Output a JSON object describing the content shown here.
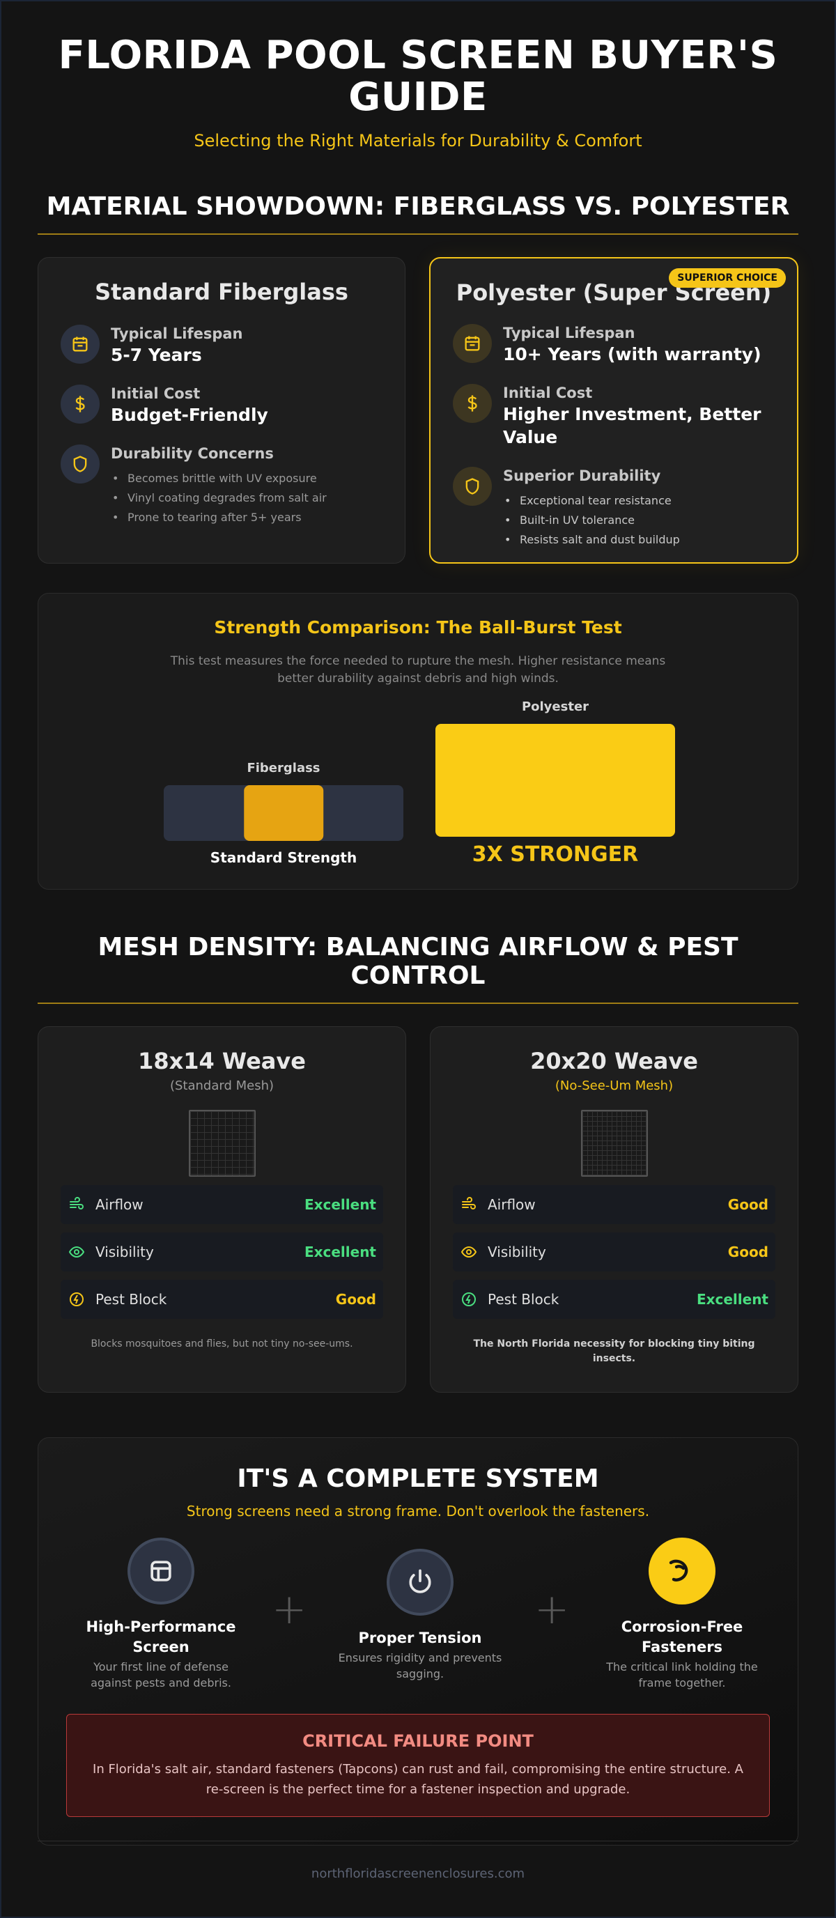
{
  "hero": {
    "title": "FLORIDA POOL SCREEN BUYER'S GUIDE",
    "subtitle": "Selecting the Right Materials for Durability & Comfort"
  },
  "materials": {
    "section_title": "MATERIAL SHOWDOWN: FIBERGLASS VS. POLYESTER",
    "fiberglass": {
      "title": "Standard Fiberglass",
      "lifespan_label": "Typical Lifespan",
      "lifespan_value": "5-7 Years",
      "cost_label": "Initial Cost",
      "cost_value": "Budget-Friendly",
      "durability_label": "Durability Concerns",
      "durability_points": [
        "Becomes brittle with UV exposure",
        "Vinyl coating degrades from salt air",
        "Prone to tearing after 5+ years"
      ]
    },
    "polyester": {
      "badge": "SUPERIOR CHOICE",
      "title": "Polyester (Super Screen)",
      "lifespan_label": "Typical Lifespan",
      "lifespan_value": "10+ Years (with warranty)",
      "cost_label": "Initial Cost",
      "cost_value": "Higher Investment, Better Value",
      "durability_label": "Superior Durability",
      "durability_points": [
        "Exceptional tear resistance",
        "Built-in UV tolerance",
        "Resists salt and dust buildup"
      ]
    }
  },
  "strength": {
    "title": "Strength Comparison: The Ball-Burst Test",
    "description": "This test measures the force needed to rupture the mesh. Higher resistance means better durability against debris and high winds.",
    "fiberglass_label": "Fiberglass",
    "fiberglass_caption": "Standard Strength",
    "polyester_label": "Polyester",
    "polyester_caption": "3X STRONGER",
    "fiberglass_relative": 1,
    "polyester_relative": 3,
    "fiberglass_fill_fraction": 0.33
  },
  "mesh": {
    "section_title": "MESH DENSITY: BALANCING AIRFLOW & PEST CONTROL",
    "standard": {
      "title": "18x14 Weave",
      "subtitle": "(Standard Mesh)",
      "rows": [
        {
          "icon": "wind-icon",
          "label": "Airflow",
          "value": "Excellent",
          "color": "#4ade80"
        },
        {
          "icon": "eye-icon",
          "label": "Visibility",
          "value": "Excellent",
          "color": "#4ade80"
        },
        {
          "icon": "bug-shield-icon",
          "label": "Pest Block",
          "value": "Good",
          "color": "#f5c518"
        }
      ],
      "note": "Blocks mosquitoes and flies, but not tiny no-see-ums."
    },
    "nosee": {
      "title": "20x20 Weave",
      "subtitle": "(No-See-Um Mesh)",
      "rows": [
        {
          "icon": "wind-icon",
          "label": "Airflow",
          "value": "Good",
          "color": "#f5c518"
        },
        {
          "icon": "eye-icon",
          "label": "Visibility",
          "value": "Good",
          "color": "#f5c518"
        },
        {
          "icon": "bug-shield-icon",
          "label": "Pest Block",
          "value": "Excellent",
          "color": "#4ade80"
        }
      ],
      "note": "The North Florida necessity for blocking tiny biting insects."
    }
  },
  "system": {
    "title": "IT'S A COMPLETE SYSTEM",
    "subtitle": "Strong screens need a strong frame. Don't overlook the fasteners.",
    "steps": [
      {
        "title": "High-Performance Screen",
        "desc": "Your first line of defense against pests and debris."
      },
      {
        "title": "Proper Tension",
        "desc": "Ensures rigidity and prevents sagging."
      },
      {
        "title": "Corrosion-Free Fasteners",
        "desc": "The critical link holding the frame together."
      }
    ],
    "plus": "+",
    "critical_title": "CRITICAL FAILURE POINT",
    "critical_text": "In Florida's salt air, standard fasteners (Tapcons) can rust and fail, compromising the entire structure. A re-screen is the perfect time for a fastener inspection and upgrade."
  },
  "footer": {
    "domain": "northfloridascreenenclosures.com"
  },
  "colors": {
    "accent": "#f5c518",
    "good_green": "#4ade80",
    "danger": "#f28b82"
  }
}
